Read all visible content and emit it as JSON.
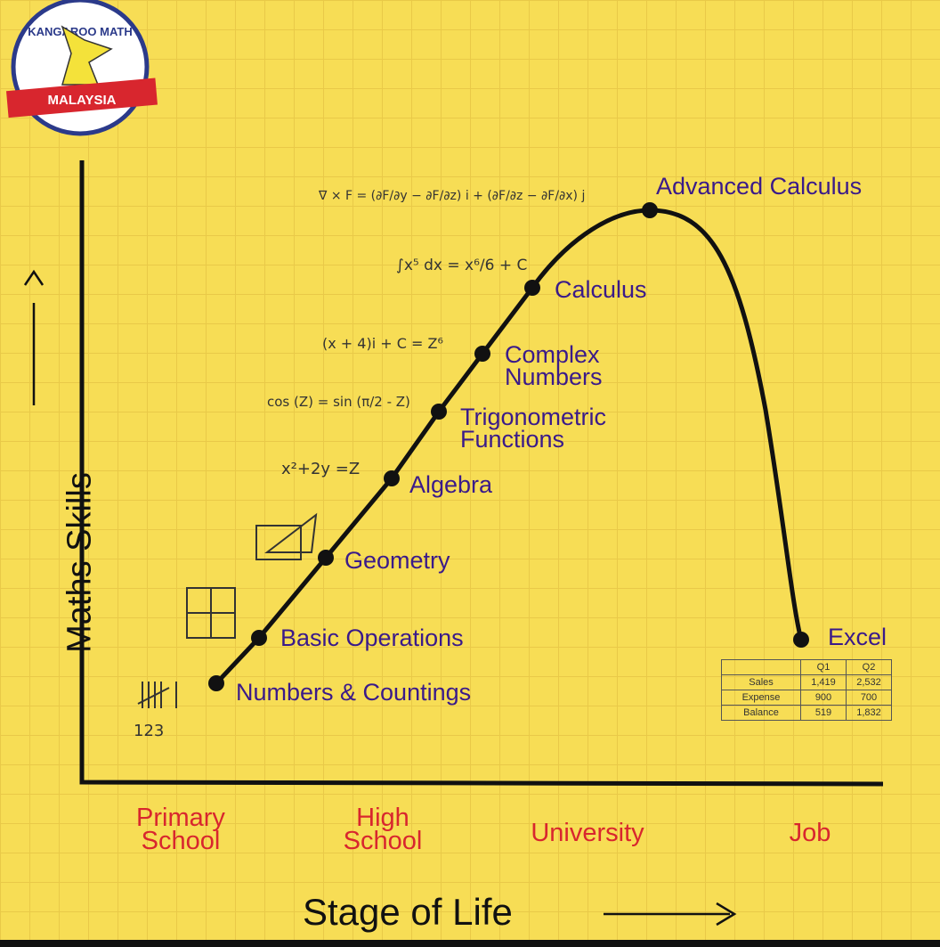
{
  "logo": {
    "text_top": "KANGAROO MATH",
    "banner": "MALAYSIA"
  },
  "chart_data": {
    "type": "line",
    "xlabel": "Stage of Life",
    "ylabel": "Maths Skills",
    "categories": [
      "Primary School",
      "High School",
      "University",
      "Job"
    ],
    "points": [
      {
        "label": "Numbers & Countings",
        "stage": "Primary School"
      },
      {
        "label": "Basic Operations",
        "stage": "Primary School"
      },
      {
        "label": "Geometry",
        "stage": "High School"
      },
      {
        "label": "Algebra",
        "stage": "High School"
      },
      {
        "label": "Trigonometric Functions",
        "stage": "High School"
      },
      {
        "label": "Complex Numbers",
        "stage": "University"
      },
      {
        "label": "Calculus",
        "stage": "University"
      },
      {
        "label": "Advanced Calculus",
        "stage": "University"
      },
      {
        "label": "Excel",
        "stage": "Job"
      }
    ],
    "annotations": {
      "tally": "123",
      "ops": [
        "+",
        "-",
        "x",
        "/"
      ],
      "algebra": "x²+2y =Z",
      "trig": "cos (Z) = sin (π/2 - Z)",
      "complex": "(x + 4)i + C = Z⁶",
      "integral": "∫x⁵ dx = x⁶/6 + C",
      "curl": "∇ × F = (∂F/∂y − ∂F/∂z) i + (∂F/∂z − ∂F/∂x) j"
    },
    "excel_table": {
      "header": [
        "",
        "Q1",
        "Q2"
      ],
      "rows": [
        [
          "Sales",
          "1,419",
          "2,532"
        ],
        [
          "Expense",
          "900",
          "700"
        ],
        [
          "Balance",
          "519",
          "1,832"
        ]
      ]
    }
  }
}
